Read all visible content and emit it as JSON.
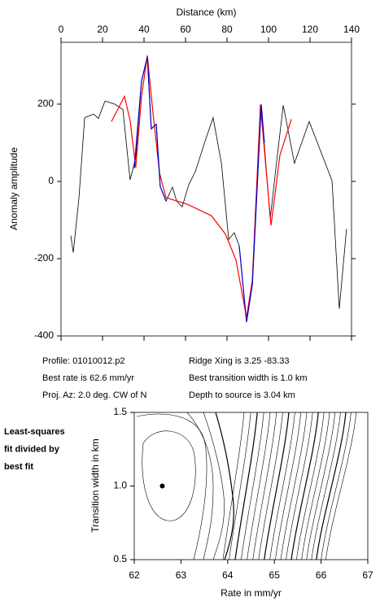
{
  "chart_data": [
    {
      "type": "line",
      "xlabel": "Distance (km)",
      "ylabel": "Anomaly amplitude",
      "xlim": [
        0,
        140
      ],
      "xticks": [
        0,
        20,
        40,
        60,
        80,
        100,
        120,
        140
      ],
      "ylim": [
        -400,
        360
      ],
      "yticks": [
        -400,
        -200,
        0,
        200
      ],
      "series": [
        {
          "color": "#000000",
          "x": [
            4.7,
            5.9,
            8.6,
            11.4,
            15.7,
            18,
            21.2,
            25.9,
            29.8,
            33.3,
            36,
            38.8,
            41.6,
            43.5,
            45.9,
            47.8,
            50.6,
            53.7,
            55.7,
            58.4,
            61.6,
            64.7,
            69.4,
            73.3,
            77.3,
            80.8,
            83.5,
            85.9,
            89.4,
            92.2,
            96.5,
            100.8,
            103.9,
            107.1,
            112.5,
            119.6,
            130.6,
            134.1,
            137.6
          ],
          "values": [
            -140,
            -184,
            -45,
            165,
            174,
            163,
            208,
            200,
            186,
            4,
            61,
            260,
            322,
            136,
            148,
            -13,
            -51,
            -15,
            -51,
            -66,
            -8,
            25,
            104,
            165,
            47,
            -150,
            -133,
            -167,
            -364,
            -267,
            199,
            -97,
            51,
            197,
            47,
            155,
            2,
            -330,
            -123
          ]
        },
        {
          "color": "#ff0000",
          "x": [
            24.3,
            30.6,
            33.3,
            36,
            38.8,
            41.6,
            44.3,
            47.5,
            50.6,
            60.8,
            72.5,
            79.2,
            84.3,
            89.4,
            92.2,
            96.1,
            101.2,
            105.5,
            111
          ],
          "values": [
            155,
            220,
            157,
            36,
            220,
            326,
            178,
            21,
            -42,
            -59,
            -89,
            -136,
            -203,
            -352,
            -256,
            199,
            -114,
            68,
            161
          ]
        },
        {
          "color": "#0000cc",
          "x": [
            35.3,
            38.8,
            41.6,
            43.5,
            45.9,
            47.8,
            50.6,
            70,
            85.9,
            89.4,
            92.2,
            96.5,
            98
          ],
          "values": [
            34,
            260,
            322,
            136,
            148,
            -13,
            -51,
            null,
            -167,
            -364,
            -267,
            199,
            100
          ]
        }
      ],
      "annotations": [
        "Profile: 01010012.p2",
        "Best rate is 62.6 mm/yr",
        "Proj. Az: 2.0 deg. CW of N",
        "Ridge Xing is 3.25 -83.33",
        "Best transition width is 1.0 km",
        "Depth to source is   3.04 km"
      ]
    },
    {
      "type": "scatter",
      "xlabel": "Rate in mm/yr",
      "ylabel": "Transition width in km",
      "xlim": [
        62,
        67
      ],
      "xticks": [
        62,
        63,
        64,
        65,
        66,
        67
      ],
      "ylim": [
        0.5,
        1.5
      ],
      "yticks": [
        0.5,
        {
          "value": 1,
          "label": "1.0"
        },
        1.5
      ],
      "x": [
        62.6
      ],
      "values": [
        1.0
      ],
      "color": "#000000",
      "annotations": [
        "Least-squares",
        "fit divided by",
        "best fit"
      ]
    }
  ]
}
